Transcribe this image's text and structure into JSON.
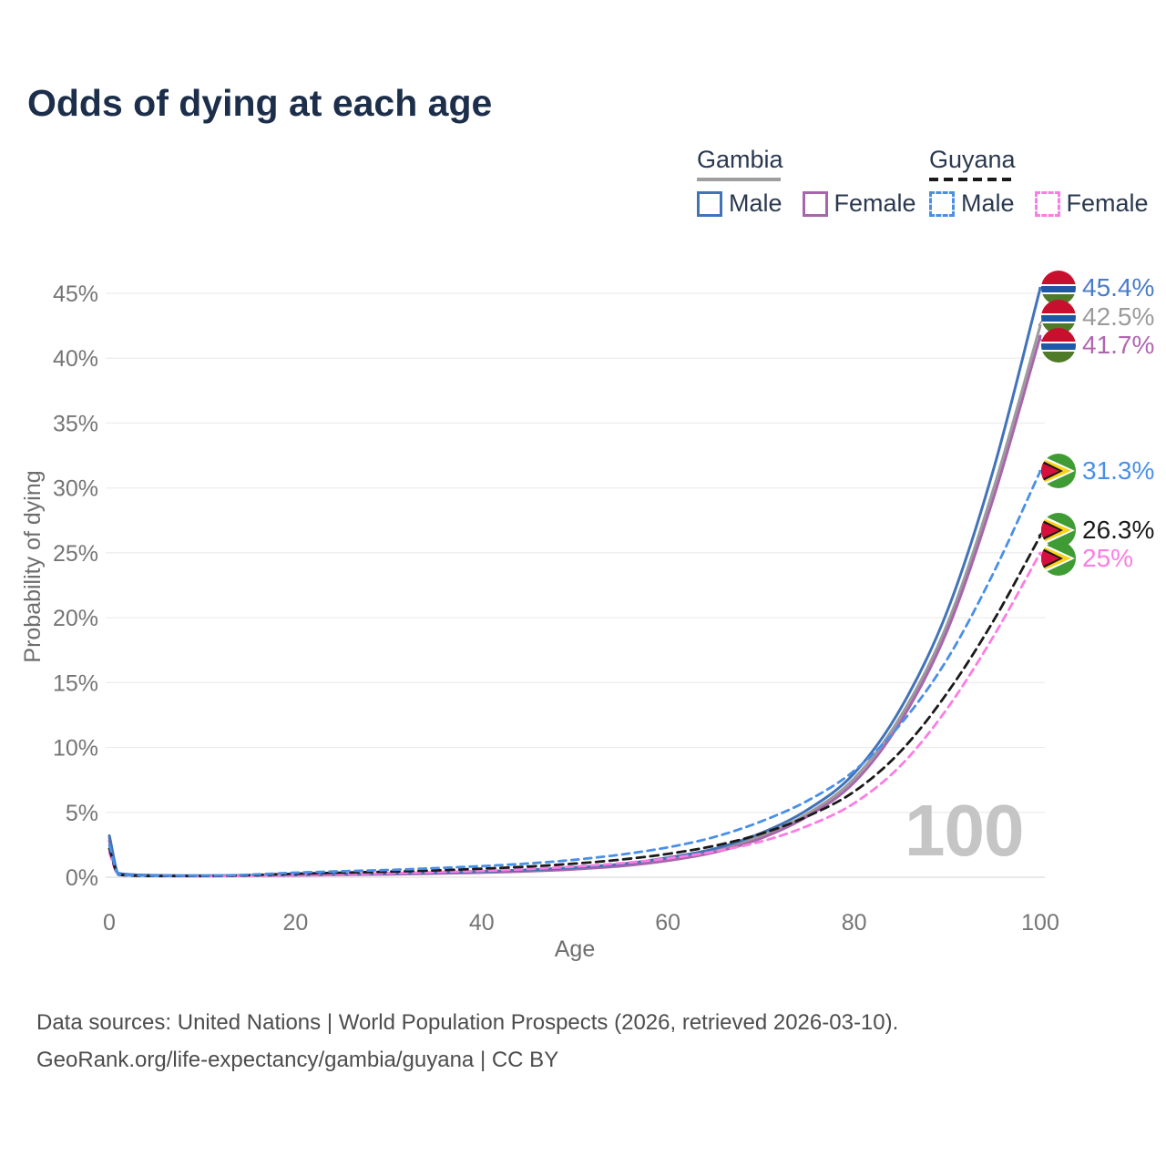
{
  "title": "Odds of dying at each age",
  "legend": {
    "groups": [
      {
        "name": "Gambia",
        "underline_style": "solid",
        "underline_color": "#9e9e9e",
        "items": [
          {
            "label": "Male",
            "color": "#4273b8",
            "dashed": false
          },
          {
            "label": "Female",
            "color": "#a965ab",
            "dashed": false
          }
        ]
      },
      {
        "name": "Guyana",
        "underline_style": "dashed",
        "underline_color": "#1a1a1a",
        "items": [
          {
            "label": "Male",
            "color": "#4a8fe6",
            "dashed": true
          },
          {
            "label": "Female",
            "color": "#fb7de4",
            "dashed": true
          }
        ]
      }
    ]
  },
  "chart_data": {
    "type": "line",
    "title": "Odds of dying at each age",
    "xlabel": "Age",
    "ylabel": "Probability of dying",
    "xlim": [
      0,
      100
    ],
    "ylim": [
      0,
      45
    ],
    "xticks": [
      0,
      20,
      40,
      60,
      80,
      100
    ],
    "yticks": [
      "0%",
      "5%",
      "10%",
      "15%",
      "20%",
      "25%",
      "30%",
      "35%",
      "40%",
      "45%"
    ],
    "grid": "horizontal",
    "legend_position": "top-right",
    "watermark": "100",
    "ages": [
      0,
      1,
      5,
      10,
      15,
      20,
      25,
      30,
      35,
      40,
      45,
      50,
      55,
      60,
      65,
      70,
      75,
      80,
      85,
      90,
      95,
      100
    ],
    "series": [
      {
        "id": "gambia-both",
        "name": "Gambia",
        "color": "#9b9b9b",
        "dash": null,
        "width": 3,
        "values": [
          3.0,
          0.28,
          0.14,
          0.11,
          0.13,
          0.17,
          0.22,
          0.27,
          0.32,
          0.4,
          0.51,
          0.68,
          0.93,
          1.38,
          2.04,
          3.18,
          4.9,
          7.6,
          12.4,
          19.5,
          30.0,
          42.5
        ]
      },
      {
        "id": "gambia-female",
        "name": "Gambia Female",
        "color": "#a965ab",
        "dash": null,
        "width": 3,
        "values": [
          2.8,
          0.26,
          0.13,
          0.1,
          0.12,
          0.15,
          0.19,
          0.23,
          0.29,
          0.36,
          0.46,
          0.62,
          0.86,
          1.28,
          1.92,
          3.0,
          4.7,
          7.3,
          12.0,
          19.0,
          29.3,
          41.7
        ]
      },
      {
        "id": "gambia-male",
        "name": "Gambia Male",
        "color": "#4273b8",
        "dash": null,
        "width": 3,
        "values": [
          3.2,
          0.3,
          0.15,
          0.12,
          0.15,
          0.2,
          0.25,
          0.3,
          0.36,
          0.45,
          0.57,
          0.75,
          1.02,
          1.5,
          2.2,
          3.4,
          5.2,
          8.0,
          13.0,
          20.5,
          31.5,
          45.4
        ]
      },
      {
        "id": "guyana-female",
        "name": "Guyana Female",
        "color": "#fb7de4",
        "dash": "8 6",
        "width": 2.8,
        "values": [
          1.9,
          0.18,
          0.09,
          0.08,
          0.12,
          0.18,
          0.24,
          0.31,
          0.39,
          0.49,
          0.63,
          0.82,
          1.08,
          1.45,
          1.98,
          2.75,
          3.95,
          5.7,
          8.6,
          13.0,
          18.6,
          25.0
        ]
      },
      {
        "id": "guyana-both",
        "name": "Guyana",
        "color": "#1a1a1a",
        "dash": "9 6",
        "width": 2.8,
        "values": [
          2.2,
          0.2,
          0.1,
          0.1,
          0.16,
          0.27,
          0.35,
          0.43,
          0.53,
          0.66,
          0.82,
          1.05,
          1.36,
          1.8,
          2.42,
          3.35,
          4.7,
          6.6,
          9.7,
          14.2,
          19.8,
          26.3
        ]
      },
      {
        "id": "guyana-male",
        "name": "Guyana Male",
        "color": "#4a8fe6",
        "dash": "8 6",
        "width": 2.8,
        "values": [
          2.5,
          0.22,
          0.12,
          0.12,
          0.2,
          0.35,
          0.46,
          0.56,
          0.7,
          0.86,
          1.06,
          1.35,
          1.75,
          2.3,
          3.1,
          4.3,
          5.9,
          8.2,
          11.8,
          16.8,
          23.5,
          31.3
        ]
      }
    ],
    "end_labels": [
      {
        "text": "45.4%",
        "value": 45.4,
        "flag": "gambia",
        "color": "#4a7cc8",
        "dashed": false
      },
      {
        "text": "42.5%",
        "value": 42.5,
        "flag": "gambia",
        "color": "#9b9b9b",
        "dashed": false
      },
      {
        "text": "41.7%",
        "value": 41.7,
        "flag": "gambia",
        "color": "#b066b0",
        "dashed": false
      },
      {
        "text": "31.3%",
        "value": 31.3,
        "flag": "guyana",
        "color": "#4a90e8",
        "dashed": true
      },
      {
        "text": "26.3%",
        "value": 26.3,
        "flag": "guyana",
        "color": "#1a1a1a",
        "dashed": true
      },
      {
        "text": "25%",
        "value": 25.0,
        "flag": "guyana",
        "color": "#fb7de4",
        "dashed": true
      }
    ]
  },
  "footer": {
    "line1": "Data sources: United Nations | World Population Prospects (2026, retrieved 2026-03-10).",
    "line2": "GeoRank.org/life-expectancy/gambia/guyana | CC BY"
  }
}
